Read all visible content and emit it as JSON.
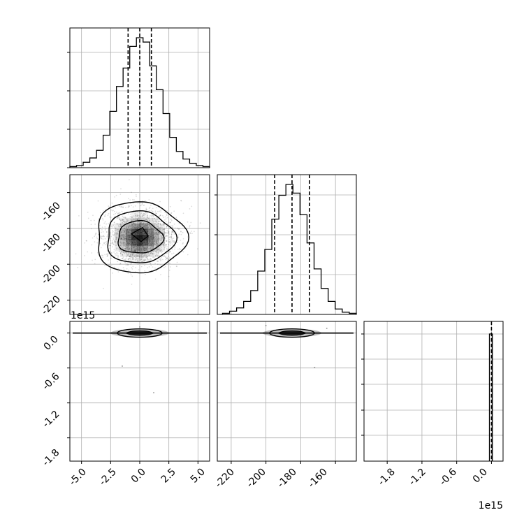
{
  "chart_data": [
    {
      "type": "histogram",
      "panel": "param-1-marginal",
      "bin_range": [
        -6.0,
        6.0
      ],
      "counts": [
        1,
        2,
        5,
        9,
        16,
        30,
        52,
        75,
        92,
        112,
        120,
        116,
        94,
        72,
        50,
        28,
        15,
        8,
        4,
        2,
        1
      ],
      "quantiles": [
        -1.0,
        0.0,
        1.0
      ],
      "grid": true
    },
    {
      "type": "histogram",
      "panel": "param-2-marginal",
      "bin_range": [
        -225.0,
        -148.0
      ],
      "counts": [
        1,
        3,
        6,
        12,
        22,
        40,
        60,
        88,
        110,
        120,
        112,
        92,
        66,
        42,
        24,
        12,
        5,
        2,
        1
      ],
      "quantiles": [
        -195.0,
        -185.0,
        -175.0
      ],
      "grid": true
    },
    {
      "type": "histogram",
      "panel": "param-3-marginal",
      "bin_range": [
        -2200000000000000.0,
        200000000000000.0
      ],
      "counts": [
        120
      ],
      "bin_center": 0.0,
      "quantiles": [
        0.0,
        0.0,
        0.0
      ],
      "grid": true
    },
    {
      "type": "contour",
      "panel": "param-1-vs-param-2",
      "center": [
        0.0,
        -185.0
      ],
      "std": [
        1.5,
        8.0
      ],
      "x_ticks": [
        -5.0,
        -2.5,
        0.0,
        2.5,
        5.0
      ],
      "y_ticks": [
        -160,
        -180,
        -200,
        -220
      ],
      "xlim": [
        -6.0,
        6.0
      ],
      "ylim": [
        -228,
        -150
      ],
      "grid": true
    },
    {
      "type": "contour",
      "panel": "param-1-vs-param-3",
      "center": [
        0.0,
        0.0
      ],
      "y_ticks": [
        0.0,
        -0.6,
        -1.2,
        -1.8
      ],
      "x_tick_labels": [
        "-5.0",
        "-2.5",
        "0.0",
        "2.5",
        "5.0"
      ],
      "y_tick_labels": [
        "0.0",
        "-0.6",
        "-1.2",
        "-1.8"
      ],
      "y_offset_text": "1e15",
      "xlim": [
        -6.0,
        6.0
      ],
      "ylim": [
        -2.2,
        0.2
      ],
      "grid": true
    },
    {
      "type": "contour",
      "panel": "param-2-vs-param-3",
      "center": [
        -185.0,
        0.0
      ],
      "x_ticks": [
        -220,
        -200,
        -180,
        -160
      ],
      "x_tick_labels": [
        "-220",
        "-200",
        "-180",
        "-160"
      ],
      "xlim": [
        -228,
        -148
      ],
      "ylim": [
        -2.2,
        0.2
      ],
      "grid": true
    },
    {
      "type": "axis",
      "panel": "param-3-marginal",
      "x_ticks": [
        -1.8,
        -1.2,
        -0.6,
        0.0
      ],
      "x_tick_labels": [
        "-1.8",
        "-1.2",
        "-0.6",
        "0.0"
      ],
      "x_offset_text": "1e15",
      "xlim": [
        -2.2,
        0.2
      ]
    }
  ],
  "labels": {
    "p1_x_ticks": [
      "-5.0",
      "-2.5",
      "0.0",
      "2.5",
      "5.0"
    ],
    "p2_y_ticks": [
      "-160",
      "-180",
      "-200",
      "-220"
    ],
    "p3_y_ticks": [
      "0.0",
      "-0.6",
      "-1.2",
      "-1.8"
    ],
    "p2_x_ticks": [
      "-220",
      "-200",
      "-180",
      "-160"
    ],
    "p3_x_ticks": [
      "-1.8",
      "-1.2",
      "-0.6",
      "0.0"
    ],
    "offset_y3": "1e15",
    "offset_x3": "1e15"
  },
  "colors": {
    "ink": "#000000",
    "grid": "#b0b0b0",
    "scatter": "#000000"
  }
}
